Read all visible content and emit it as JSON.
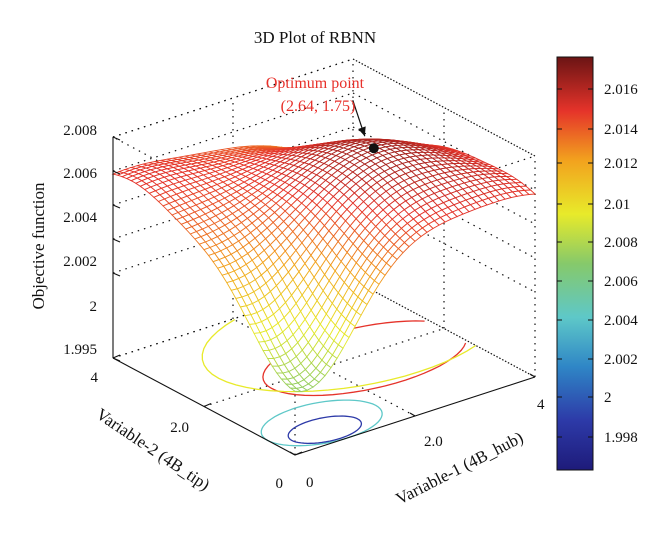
{
  "chart_data": {
    "type": "surface3d",
    "title": "3D Plot of RBNN",
    "xlabel": "Variable-1 (4B_hub)",
    "ylabel": "Variable-2 (4B_tip)",
    "zlabel": "Objective function",
    "x_ticks": [
      "0",
      "2.0",
      "4"
    ],
    "y_ticks": [
      "0",
      "2.0",
      "4"
    ],
    "z_ticks": [
      "1.995",
      "2",
      "2.002",
      "2.004",
      "2.006",
      "2.008"
    ],
    "xlim": [
      0,
      4
    ],
    "ylim": [
      0,
      4
    ],
    "zlim": [
      1.995,
      2.008
    ],
    "colorbar": {
      "ticks": [
        "2.016",
        "2.014",
        "2.012",
        "2.01",
        "2.008",
        "2.006",
        "2.004",
        "2.002",
        "2",
        "1.998"
      ],
      "colormap": "jet"
    },
    "annotation": {
      "line1": "Optimum point",
      "line2": "(2.64, 1.75)",
      "color": "#e8302a",
      "point": {
        "x": 2.64,
        "y": 1.75
      }
    },
    "grid": true,
    "contour_at_base": true
  }
}
